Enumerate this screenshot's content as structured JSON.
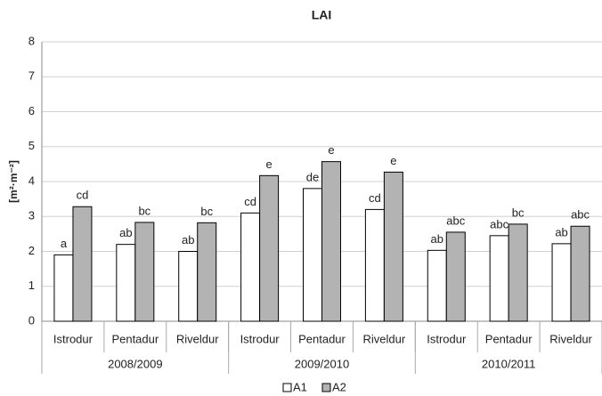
{
  "chart_data": {
    "type": "bar",
    "title": "LAI",
    "y_label": "[m²·m⁻²]",
    "categories": [
      "Istrodur",
      "Pentadur",
      "Riveldur",
      "Istrodur",
      "Pentadur",
      "Riveldur",
      "Istrodur",
      "Pentadur",
      "Riveldur"
    ],
    "groups": [
      {
        "label": "2008/2009",
        "span": 3
      },
      {
        "label": "2009/2010",
        "span": 3
      },
      {
        "label": "2010/2011",
        "span": 3
      }
    ],
    "series": [
      {
        "name": "A1",
        "color": "#ffffff",
        "values": [
          1.9,
          2.2,
          2.0,
          3.1,
          3.8,
          3.2,
          2.03,
          2.45,
          2.22
        ],
        "letters": [
          "a",
          "ab",
          "ab",
          "cd",
          "de",
          "cd",
          "ab",
          "abc",
          "ab"
        ]
      },
      {
        "name": "A2",
        "color": "#b3b3b3",
        "values": [
          3.28,
          2.83,
          2.82,
          4.17,
          4.57,
          4.27,
          2.55,
          2.78,
          2.72
        ],
        "letters": [
          "cd",
          "bc",
          "bc",
          "e",
          "e",
          "e",
          "abc",
          "bc",
          "abc"
        ]
      }
    ],
    "ylim": [
      0,
      8
    ],
    "yticks": [
      0,
      1,
      2,
      3,
      4,
      5,
      6,
      7,
      8
    ],
    "grid": true,
    "legend": "bottom"
  }
}
